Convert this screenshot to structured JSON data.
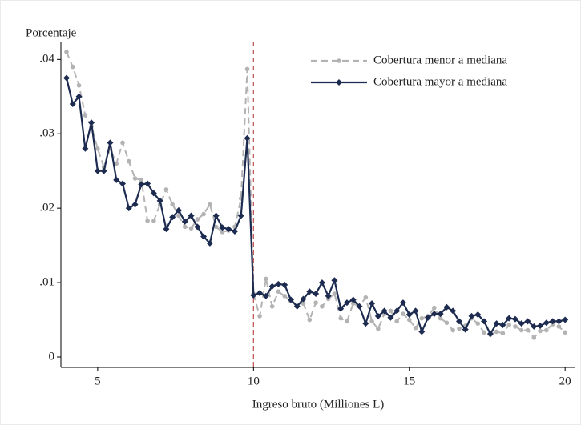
{
  "chart_data": {
    "type": "line",
    "y_label": "Porcentaje",
    "x_label": "Ingreso bruto (Milliones L)",
    "x": [
      4,
      4.2,
      4.4,
      4.6,
      4.8,
      5,
      5.2,
      5.4,
      5.6,
      5.8,
      6,
      6.2,
      6.4,
      6.6,
      6.8,
      7,
      7.2,
      7.4,
      7.6,
      7.8,
      8,
      8.2,
      8.4,
      8.6,
      8.8,
      9,
      9.2,
      9.4,
      9.6,
      9.8,
      10,
      10.2,
      10.4,
      10.6,
      10.8,
      11,
      11.2,
      11.4,
      11.6,
      11.8,
      12,
      12.2,
      12.4,
      12.6,
      12.8,
      13,
      13.2,
      13.4,
      13.6,
      13.8,
      14,
      14.2,
      14.4,
      14.6,
      14.8,
      15,
      15.2,
      15.4,
      15.6,
      15.8,
      16,
      16.2,
      16.4,
      16.6,
      16.8,
      17,
      17.2,
      17.4,
      17.6,
      17.8,
      18,
      18.2,
      18.4,
      18.6,
      18.8,
      19,
      19.2,
      19.4,
      19.6,
      19.8,
      20
    ],
    "series": [
      {
        "name": "Cobertura menor a mediana",
        "color": "#b3b3b3",
        "line_style": "dashed",
        "marker": "circle",
        "values": [
          0.041,
          0.039,
          0.0365,
          0.0325,
          0.031,
          0.028,
          0.0255,
          0.028,
          0.026,
          0.0288,
          0.0263,
          0.024,
          0.0238,
          0.0183,
          0.0183,
          0.0205,
          0.0225,
          0.0205,
          0.019,
          0.0175,
          0.0173,
          0.0185,
          0.0192,
          0.0205,
          0.0175,
          0.0168,
          0.017,
          0.0175,
          0.0213,
          0.0387,
          0.0085,
          0.0055,
          0.0105,
          0.0068,
          0.0088,
          0.0082,
          0.0075,
          0.0068,
          0.0072,
          0.005,
          0.0073,
          0.0068,
          0.0078,
          0.0085,
          0.0052,
          0.0048,
          0.0072,
          0.0068,
          0.008,
          0.0048,
          0.0038,
          0.0058,
          0.0062,
          0.0048,
          0.0058,
          0.005,
          0.0039,
          0.0052,
          0.0055,
          0.0066,
          0.0052,
          0.0046,
          0.0036,
          0.0038,
          0.0042,
          0.0052,
          0.0045,
          0.0033,
          0.003,
          0.0034,
          0.0032,
          0.0043,
          0.0041,
          0.0036,
          0.0036,
          0.0026,
          0.0035,
          0.0036,
          0.0044,
          0.0041,
          0.0033
        ]
      },
      {
        "name": "Cobertura mayor a mediana",
        "color": "#1c2b4f",
        "line_style": "solid",
        "marker": "diamond",
        "values": [
          0.0375,
          0.034,
          0.035,
          0.028,
          0.0315,
          0.025,
          0.025,
          0.0288,
          0.0238,
          0.0233,
          0.02,
          0.0205,
          0.0232,
          0.0233,
          0.022,
          0.021,
          0.0172,
          0.0188,
          0.0197,
          0.0182,
          0.019,
          0.0175,
          0.0162,
          0.0153,
          0.019,
          0.0174,
          0.0172,
          0.0169,
          0.019,
          0.0294,
          0.0083,
          0.0086,
          0.0082,
          0.0095,
          0.0098,
          0.0097,
          0.0077,
          0.0068,
          0.0078,
          0.0088,
          0.0085,
          0.01,
          0.0082,
          0.0103,
          0.0065,
          0.0073,
          0.0077,
          0.0068,
          0.0045,
          0.0072,
          0.0055,
          0.0062,
          0.0053,
          0.0062,
          0.0073,
          0.0057,
          0.0062,
          0.0034,
          0.0053,
          0.0058,
          0.0058,
          0.0067,
          0.0062,
          0.0048,
          0.0037,
          0.0055,
          0.0057,
          0.0048,
          0.0031,
          0.0045,
          0.0043,
          0.0052,
          0.0051,
          0.0045,
          0.0048,
          0.0041,
          0.0042,
          0.0046,
          0.0048,
          0.0048,
          0.005
        ]
      }
    ],
    "xlim": [
      3.82,
      20.33
    ],
    "ylim": [
      -0.0014,
      0.0424
    ],
    "xticks": [
      5,
      10,
      15,
      20
    ],
    "yticks": [
      0,
      {
        "value": 0.01,
        "label": ".01"
      },
      {
        "value": 0.02,
        "label": ".02"
      },
      {
        "value": 0.03,
        "label": ".03"
      },
      {
        "value": 0.04,
        "label": ".04"
      }
    ],
    "vline": 10,
    "vline_color": "#c0504d",
    "legend": "upper right",
    "grid": false
  }
}
